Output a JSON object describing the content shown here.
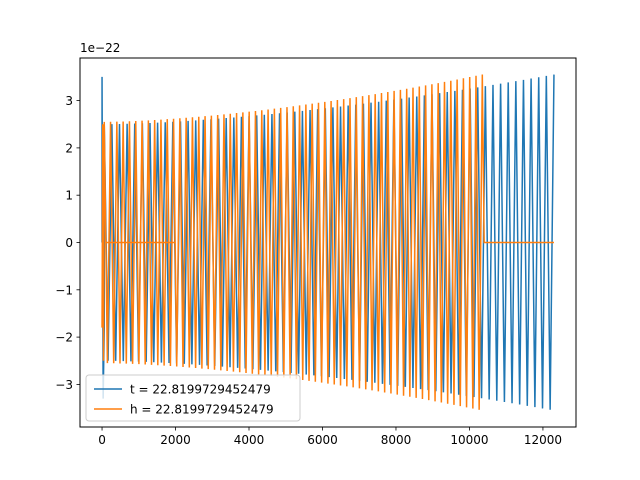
{
  "chart_data": {
    "type": "line",
    "title": "",
    "xlabel": "",
    "ylabel": "",
    "y_scale_label": "1e−22",
    "xlim": [
      -600,
      12900
    ],
    "ylim": [
      -3.9,
      3.9
    ],
    "x_ticks": [
      0,
      2000,
      4000,
      6000,
      8000,
      10000,
      12000
    ],
    "x_tick_labels": [
      "0",
      "2000",
      "4000",
      "6000",
      "8000",
      "10000",
      "12000"
    ],
    "y_ticks": [
      -3,
      -2,
      -1,
      0,
      1,
      2,
      3
    ],
    "y_tick_labels": [
      "−3",
      "−2",
      "−1",
      "0",
      "1",
      "2",
      "3"
    ],
    "grid": false,
    "legend_position": "lower-left",
    "series": [
      {
        "name": "t = 22.8199729452479",
        "color": "#1f77b4",
        "description_values": {
          "x_start": 0,
          "x_end": 12300,
          "amplitude_start": 2.5,
          "amplitude_end": 3.55,
          "initial_spike": 3.5,
          "cycles": 118
        }
      },
      {
        "name": "h = 22.8199729452479",
        "color": "#ff7f0e",
        "description_values": {
          "x_start": 0,
          "x_end": 10350,
          "amplitude_start": 2.55,
          "amplitude_end": 3.55,
          "flat_after_x": 10400,
          "flat_until_x": 12300,
          "cycles": 120
        }
      }
    ]
  }
}
